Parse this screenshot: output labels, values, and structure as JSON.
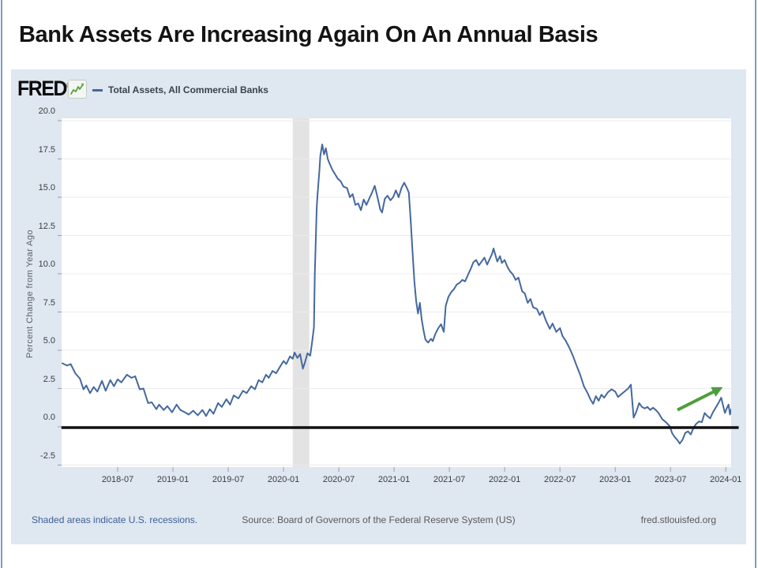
{
  "slide": {
    "title": "Bank Assets Are Increasing Again On An Annual Basis"
  },
  "panel": {
    "logo": "FRED",
    "logo_reg": "®",
    "legend_label": "Total Assets, All Commercial Banks",
    "footer_left": "Shaded areas indicate U.S. recessions.",
    "footer_center": "Source: Board of Governors of the Federal Reserve System (US)",
    "footer_right": "fred.stlouisfed.org"
  },
  "colors": {
    "panel_bg": "#dfe7f1",
    "plot_bg": "#ffffff",
    "gridline": "#ebebeb",
    "tick": "#9aa0a6",
    "line": "#44699d",
    "recession_band": "#e3e3e3",
    "zero_line": "#111111",
    "arrow_green": "#4f9e3d",
    "logo_icon_green": "#5aa23c"
  },
  "chart_data": {
    "type": "line",
    "title": "Total Assets, All Commercial Banks",
    "ylabel": "Percent Change from Year Ago",
    "xlabel": "",
    "x_unit": "months since 2018-01 (mid-month), weekly resolution",
    "ylim": [
      -2.6,
      20.2
    ],
    "grid": "horizontal",
    "legend_position": "top-left header",
    "y_tick_labels": [
      "20.0",
      "17.5",
      "15.0",
      "12.5",
      "10.0",
      "7.5",
      "5.0",
      "2.5",
      "0.0",
      "-2.5"
    ],
    "x_ticks": [
      {
        "t": 6,
        "label": "2018-07"
      },
      {
        "t": 12,
        "label": "2019-01"
      },
      {
        "t": 18,
        "label": "2019-07"
      },
      {
        "t": 24,
        "label": "2020-01"
      },
      {
        "t": 30,
        "label": "2020-07"
      },
      {
        "t": 36,
        "label": "2021-01"
      },
      {
        "t": 42,
        "label": "2021-07"
      },
      {
        "t": 48,
        "label": "2022-01"
      },
      {
        "t": 54,
        "label": "2022-07"
      },
      {
        "t": 60,
        "label": "2023-01"
      },
      {
        "t": 66,
        "label": "2023-07"
      },
      {
        "t": 72,
        "label": "2024-01"
      }
    ],
    "recession_band": {
      "start": 25.0,
      "end": 26.8,
      "note": "COVID-19 recession shading, early 2020"
    },
    "annotations": [
      {
        "type": "hline",
        "name": "zero-line",
        "value": 0,
        "x_from": -0.1,
        "x_to": 73.4,
        "width": 3.5
      },
      {
        "type": "arrow",
        "name": "uptrend-arrow",
        "from": [
          66.75,
          1.1
        ],
        "to": [
          72.05,
          2.65
        ],
        "width": 4
      }
    ],
    "series": [
      {
        "name": "Total Assets, All Commercial Banks",
        "points": [
          [
            0,
            4.15
          ],
          [
            0.5,
            4.0
          ],
          [
            0.9,
            4.1
          ],
          [
            1.4,
            3.5
          ],
          [
            1.9,
            3.15
          ],
          [
            2.3,
            2.45
          ],
          [
            2.6,
            2.7
          ],
          [
            3,
            2.2
          ],
          [
            3.4,
            2.6
          ],
          [
            3.8,
            2.3
          ],
          [
            4.3,
            3.0
          ],
          [
            4.7,
            2.35
          ],
          [
            5.2,
            3.05
          ],
          [
            5.6,
            2.65
          ],
          [
            6,
            3.1
          ],
          [
            6.4,
            2.9
          ],
          [
            7,
            3.4
          ],
          [
            7.5,
            3.2
          ],
          [
            7.9,
            3.3
          ],
          [
            8.4,
            2.45
          ],
          [
            8.8,
            2.5
          ],
          [
            9.3,
            1.55
          ],
          [
            9.7,
            1.6
          ],
          [
            10.2,
            1.15
          ],
          [
            10.5,
            1.45
          ],
          [
            11,
            1.1
          ],
          [
            11.4,
            1.35
          ],
          [
            11.9,
            0.95
          ],
          [
            12.4,
            1.45
          ],
          [
            12.8,
            1.1
          ],
          [
            13.3,
            0.95
          ],
          [
            13.7,
            0.8
          ],
          [
            14.2,
            1.05
          ],
          [
            14.7,
            0.75
          ],
          [
            15.2,
            1.1
          ],
          [
            15.6,
            0.7
          ],
          [
            16,
            1.15
          ],
          [
            16.4,
            0.85
          ],
          [
            16.9,
            1.55
          ],
          [
            17.3,
            1.3
          ],
          [
            17.8,
            1.8
          ],
          [
            18.2,
            1.45
          ],
          [
            18.6,
            2.05
          ],
          [
            19.1,
            1.85
          ],
          [
            19.6,
            2.35
          ],
          [
            20,
            2.2
          ],
          [
            20.5,
            2.65
          ],
          [
            20.9,
            2.45
          ],
          [
            21.3,
            3.05
          ],
          [
            21.7,
            2.9
          ],
          [
            22.1,
            3.4
          ],
          [
            22.4,
            3.2
          ],
          [
            22.8,
            3.65
          ],
          [
            23.2,
            3.5
          ],
          [
            23.6,
            3.9
          ],
          [
            24,
            4.3
          ],
          [
            24.3,
            4.1
          ],
          [
            24.7,
            4.6
          ],
          [
            25,
            4.45
          ],
          [
            25.2,
            4.85
          ],
          [
            25.5,
            4.5
          ],
          [
            25.8,
            4.75
          ],
          [
            26.1,
            3.8
          ],
          [
            26.3,
            4.15
          ],
          [
            26.6,
            4.8
          ],
          [
            26.9,
            4.65
          ],
          [
            27.1,
            5.5
          ],
          [
            27.3,
            6.5
          ],
          [
            27.4,
            10
          ],
          [
            27.6,
            14.3
          ],
          [
            27.7,
            15.2
          ],
          [
            27.9,
            16.8
          ],
          [
            28,
            17.7
          ],
          [
            28.2,
            18.45
          ],
          [
            28.4,
            17.8
          ],
          [
            28.6,
            18.2
          ],
          [
            28.8,
            17.5
          ],
          [
            29,
            17.2
          ],
          [
            29.3,
            16.8
          ],
          [
            29.6,
            16.5
          ],
          [
            29.9,
            16.2
          ],
          [
            30.2,
            16.05
          ],
          [
            30.5,
            15.7
          ],
          [
            30.9,
            15.6
          ],
          [
            31.2,
            15.0
          ],
          [
            31.5,
            15.2
          ],
          [
            31.8,
            14.5
          ],
          [
            32.1,
            14.6
          ],
          [
            32.4,
            14.15
          ],
          [
            32.7,
            14.85
          ],
          [
            33,
            14.5
          ],
          [
            33.3,
            14.9
          ],
          [
            33.6,
            15.3
          ],
          [
            33.9,
            15.75
          ],
          [
            34.2,
            15.0
          ],
          [
            34.5,
            14.2
          ],
          [
            34.7,
            14.0
          ],
          [
            35,
            14.9
          ],
          [
            35.3,
            15.1
          ],
          [
            35.6,
            14.8
          ],
          [
            35.9,
            15.0
          ],
          [
            36.2,
            15.45
          ],
          [
            36.5,
            15.0
          ],
          [
            36.8,
            15.6
          ],
          [
            37.1,
            15.95
          ],
          [
            37.4,
            15.6
          ],
          [
            37.6,
            15.3
          ],
          [
            37.8,
            13.5
          ],
          [
            38,
            11.5
          ],
          [
            38.2,
            9.5
          ],
          [
            38.4,
            8.2
          ],
          [
            38.6,
            7.4
          ],
          [
            38.8,
            8.1
          ],
          [
            39,
            7.0
          ],
          [
            39.2,
            6.3
          ],
          [
            39.4,
            5.7
          ],
          [
            39.7,
            5.5
          ],
          [
            40,
            5.75
          ],
          [
            40.2,
            5.6
          ],
          [
            40.5,
            6.1
          ],
          [
            40.8,
            6.45
          ],
          [
            41.1,
            6.7
          ],
          [
            41.4,
            6.2
          ],
          [
            41.6,
            7.9
          ],
          [
            41.9,
            8.5
          ],
          [
            42.2,
            8.8
          ],
          [
            42.5,
            9.0
          ],
          [
            42.8,
            9.3
          ],
          [
            43.1,
            9.4
          ],
          [
            43.4,
            9.6
          ],
          [
            43.7,
            9.5
          ],
          [
            44,
            9.9
          ],
          [
            44.3,
            10.3
          ],
          [
            44.6,
            10.75
          ],
          [
            44.9,
            10.9
          ],
          [
            45.2,
            10.55
          ],
          [
            45.5,
            10.8
          ],
          [
            45.8,
            11.05
          ],
          [
            46.1,
            10.6
          ],
          [
            46.4,
            11.0
          ],
          [
            46.6,
            11.25
          ],
          [
            46.8,
            11.65
          ],
          [
            47,
            11.2
          ],
          [
            47.2,
            10.8
          ],
          [
            47.5,
            11.15
          ],
          [
            47.7,
            10.7
          ],
          [
            48,
            10.9
          ],
          [
            48.3,
            10.45
          ],
          [
            48.6,
            10.15
          ],
          [
            48.9,
            9.95
          ],
          [
            49.2,
            9.6
          ],
          [
            49.5,
            9.75
          ],
          [
            49.9,
            8.85
          ],
          [
            50.2,
            8.7
          ],
          [
            50.5,
            8.1
          ],
          [
            50.8,
            8.35
          ],
          [
            51.1,
            7.8
          ],
          [
            51.5,
            7.7
          ],
          [
            51.8,
            7.3
          ],
          [
            52.1,
            7.55
          ],
          [
            52.5,
            6.9
          ],
          [
            52.9,
            6.4
          ],
          [
            53.2,
            6.75
          ],
          [
            53.6,
            6.2
          ],
          [
            54,
            6.45
          ],
          [
            54.3,
            5.9
          ],
          [
            54.6,
            5.65
          ],
          [
            55,
            5.2
          ],
          [
            55.4,
            4.65
          ],
          [
            55.8,
            4.0
          ],
          [
            56.2,
            3.4
          ],
          [
            56.6,
            2.65
          ],
          [
            57,
            2.2
          ],
          [
            57.3,
            1.8
          ],
          [
            57.6,
            1.5
          ],
          [
            57.9,
            2.0
          ],
          [
            58.2,
            1.7
          ],
          [
            58.5,
            2.1
          ],
          [
            58.8,
            1.9
          ],
          [
            59.2,
            2.25
          ],
          [
            59.6,
            2.45
          ],
          [
            60,
            2.3
          ],
          [
            60.3,
            1.95
          ],
          [
            60.7,
            2.15
          ],
          [
            61,
            2.3
          ],
          [
            61.4,
            2.5
          ],
          [
            61.7,
            2.75
          ],
          [
            62,
            0.6
          ],
          [
            62.3,
            1.0
          ],
          [
            62.6,
            1.55
          ],
          [
            62.9,
            1.3
          ],
          [
            63.2,
            1.2
          ],
          [
            63.5,
            1.3
          ],
          [
            63.8,
            1.1
          ],
          [
            64.1,
            1.25
          ],
          [
            64.4,
            1.1
          ],
          [
            64.7,
            0.9
          ],
          [
            65.1,
            0.5
          ],
          [
            65.5,
            0.3
          ],
          [
            65.9,
            0.05
          ],
          [
            66.2,
            -0.45
          ],
          [
            66.5,
            -0.7
          ],
          [
            66.8,
            -0.9
          ],
          [
            67,
            -1.1
          ],
          [
            67.3,
            -0.85
          ],
          [
            67.6,
            -0.4
          ],
          [
            67.9,
            -0.3
          ],
          [
            68.2,
            -0.5
          ],
          [
            68.5,
            -0.05
          ],
          [
            68.8,
            0.2
          ],
          [
            69.1,
            0.35
          ],
          [
            69.4,
            0.3
          ],
          [
            69.7,
            0.9
          ],
          [
            70,
            0.7
          ],
          [
            70.3,
            0.55
          ],
          [
            70.6,
            0.95
          ],
          [
            70.9,
            1.25
          ],
          [
            71.2,
            1.55
          ],
          [
            71.5,
            1.9
          ],
          [
            71.7,
            1.4
          ],
          [
            71.9,
            0.9
          ],
          [
            72.1,
            1.2
          ],
          [
            72.3,
            1.45
          ],
          [
            72.45,
            0.8
          ],
          [
            72.6,
            1.15
          ]
        ]
      }
    ]
  }
}
